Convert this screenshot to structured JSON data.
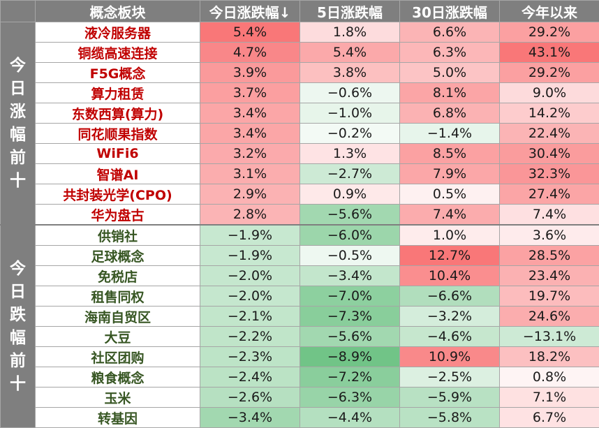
{
  "headers": [
    "概念板块",
    "今日涨跌幅↓",
    "5日涨跌幅",
    "30日涨跌幅",
    "今年以来"
  ],
  "groups": [
    {
      "label": "今日涨幅前十",
      "kind": "up",
      "rows": [
        {
          "name": "液冷服务器",
          "values": [
            "5.4%",
            "1.8%",
            "6.6%",
            "29.2%"
          ]
        },
        {
          "name": "铜缆高速连接",
          "values": [
            "4.7%",
            "5.4%",
            "6.3%",
            "43.1%"
          ]
        },
        {
          "name": "F5G概念",
          "values": [
            "3.9%",
            "3.8%",
            "5.0%",
            "29.2%"
          ]
        },
        {
          "name": "算力租赁",
          "values": [
            "3.7%",
            "−0.6%",
            "8.1%",
            "9.0%"
          ]
        },
        {
          "name": "东数西算(算力)",
          "values": [
            "3.4%",
            "−1.0%",
            "6.8%",
            "14.2%"
          ]
        },
        {
          "name": "同花顺果指数",
          "values": [
            "3.4%",
            "−0.2%",
            "−1.4%",
            "22.4%"
          ]
        },
        {
          "name": "WiFi6",
          "values": [
            "3.2%",
            "1.3%",
            "8.5%",
            "30.4%"
          ]
        },
        {
          "name": "智谱AI",
          "values": [
            "3.1%",
            "−2.7%",
            "7.9%",
            "32.3%"
          ]
        },
        {
          "name": "共封装光学(CPO)",
          "values": [
            "2.9%",
            "0.9%",
            "0.5%",
            "27.4%"
          ]
        },
        {
          "name": "华为盘古",
          "values": [
            "2.8%",
            "−5.6%",
            "7.4%",
            "7.4%"
          ]
        }
      ]
    },
    {
      "label": "今日跌幅前十",
      "kind": "down",
      "rows": [
        {
          "name": "供销社",
          "values": [
            "−1.9%",
            "−6.0%",
            "1.0%",
            "3.6%"
          ]
        },
        {
          "name": "足球概念",
          "values": [
            "−1.9%",
            "−0.5%",
            "12.7%",
            "28.5%"
          ]
        },
        {
          "name": "免税店",
          "values": [
            "−2.0%",
            "−3.4%",
            "10.4%",
            "23.4%"
          ]
        },
        {
          "name": "租售同权",
          "values": [
            "−2.0%",
            "−7.0%",
            "−6.6%",
            "19.7%"
          ]
        },
        {
          "name": "海南自贸区",
          "values": [
            "−2.1%",
            "−7.3%",
            "−3.2%",
            "24.6%"
          ]
        },
        {
          "name": "大豆",
          "values": [
            "−2.2%",
            "−5.6%",
            "−4.6%",
            "−13.1%"
          ]
        },
        {
          "name": "社区团购",
          "values": [
            "−2.3%",
            "−8.9%",
            "10.9%",
            "18.2%"
          ]
        },
        {
          "name": "粮食概念",
          "values": [
            "−2.4%",
            "−7.2%",
            "−2.5%",
            "0.8%"
          ]
        },
        {
          "name": "玉米",
          "values": [
            "−2.6%",
            "−6.3%",
            "−5.9%",
            "7.1%"
          ]
        },
        {
          "name": "转基因",
          "values": [
            "−3.4%",
            "−4.4%",
            "−5.8%",
            "6.7%"
          ]
        }
      ]
    }
  ],
  "colors": {
    "header_bg": "#7f7f7f",
    "up_text": "#c00000",
    "down_text": "#375623",
    "positive_cell": "#f8696b",
    "negative_cell": "#63be7b"
  }
}
